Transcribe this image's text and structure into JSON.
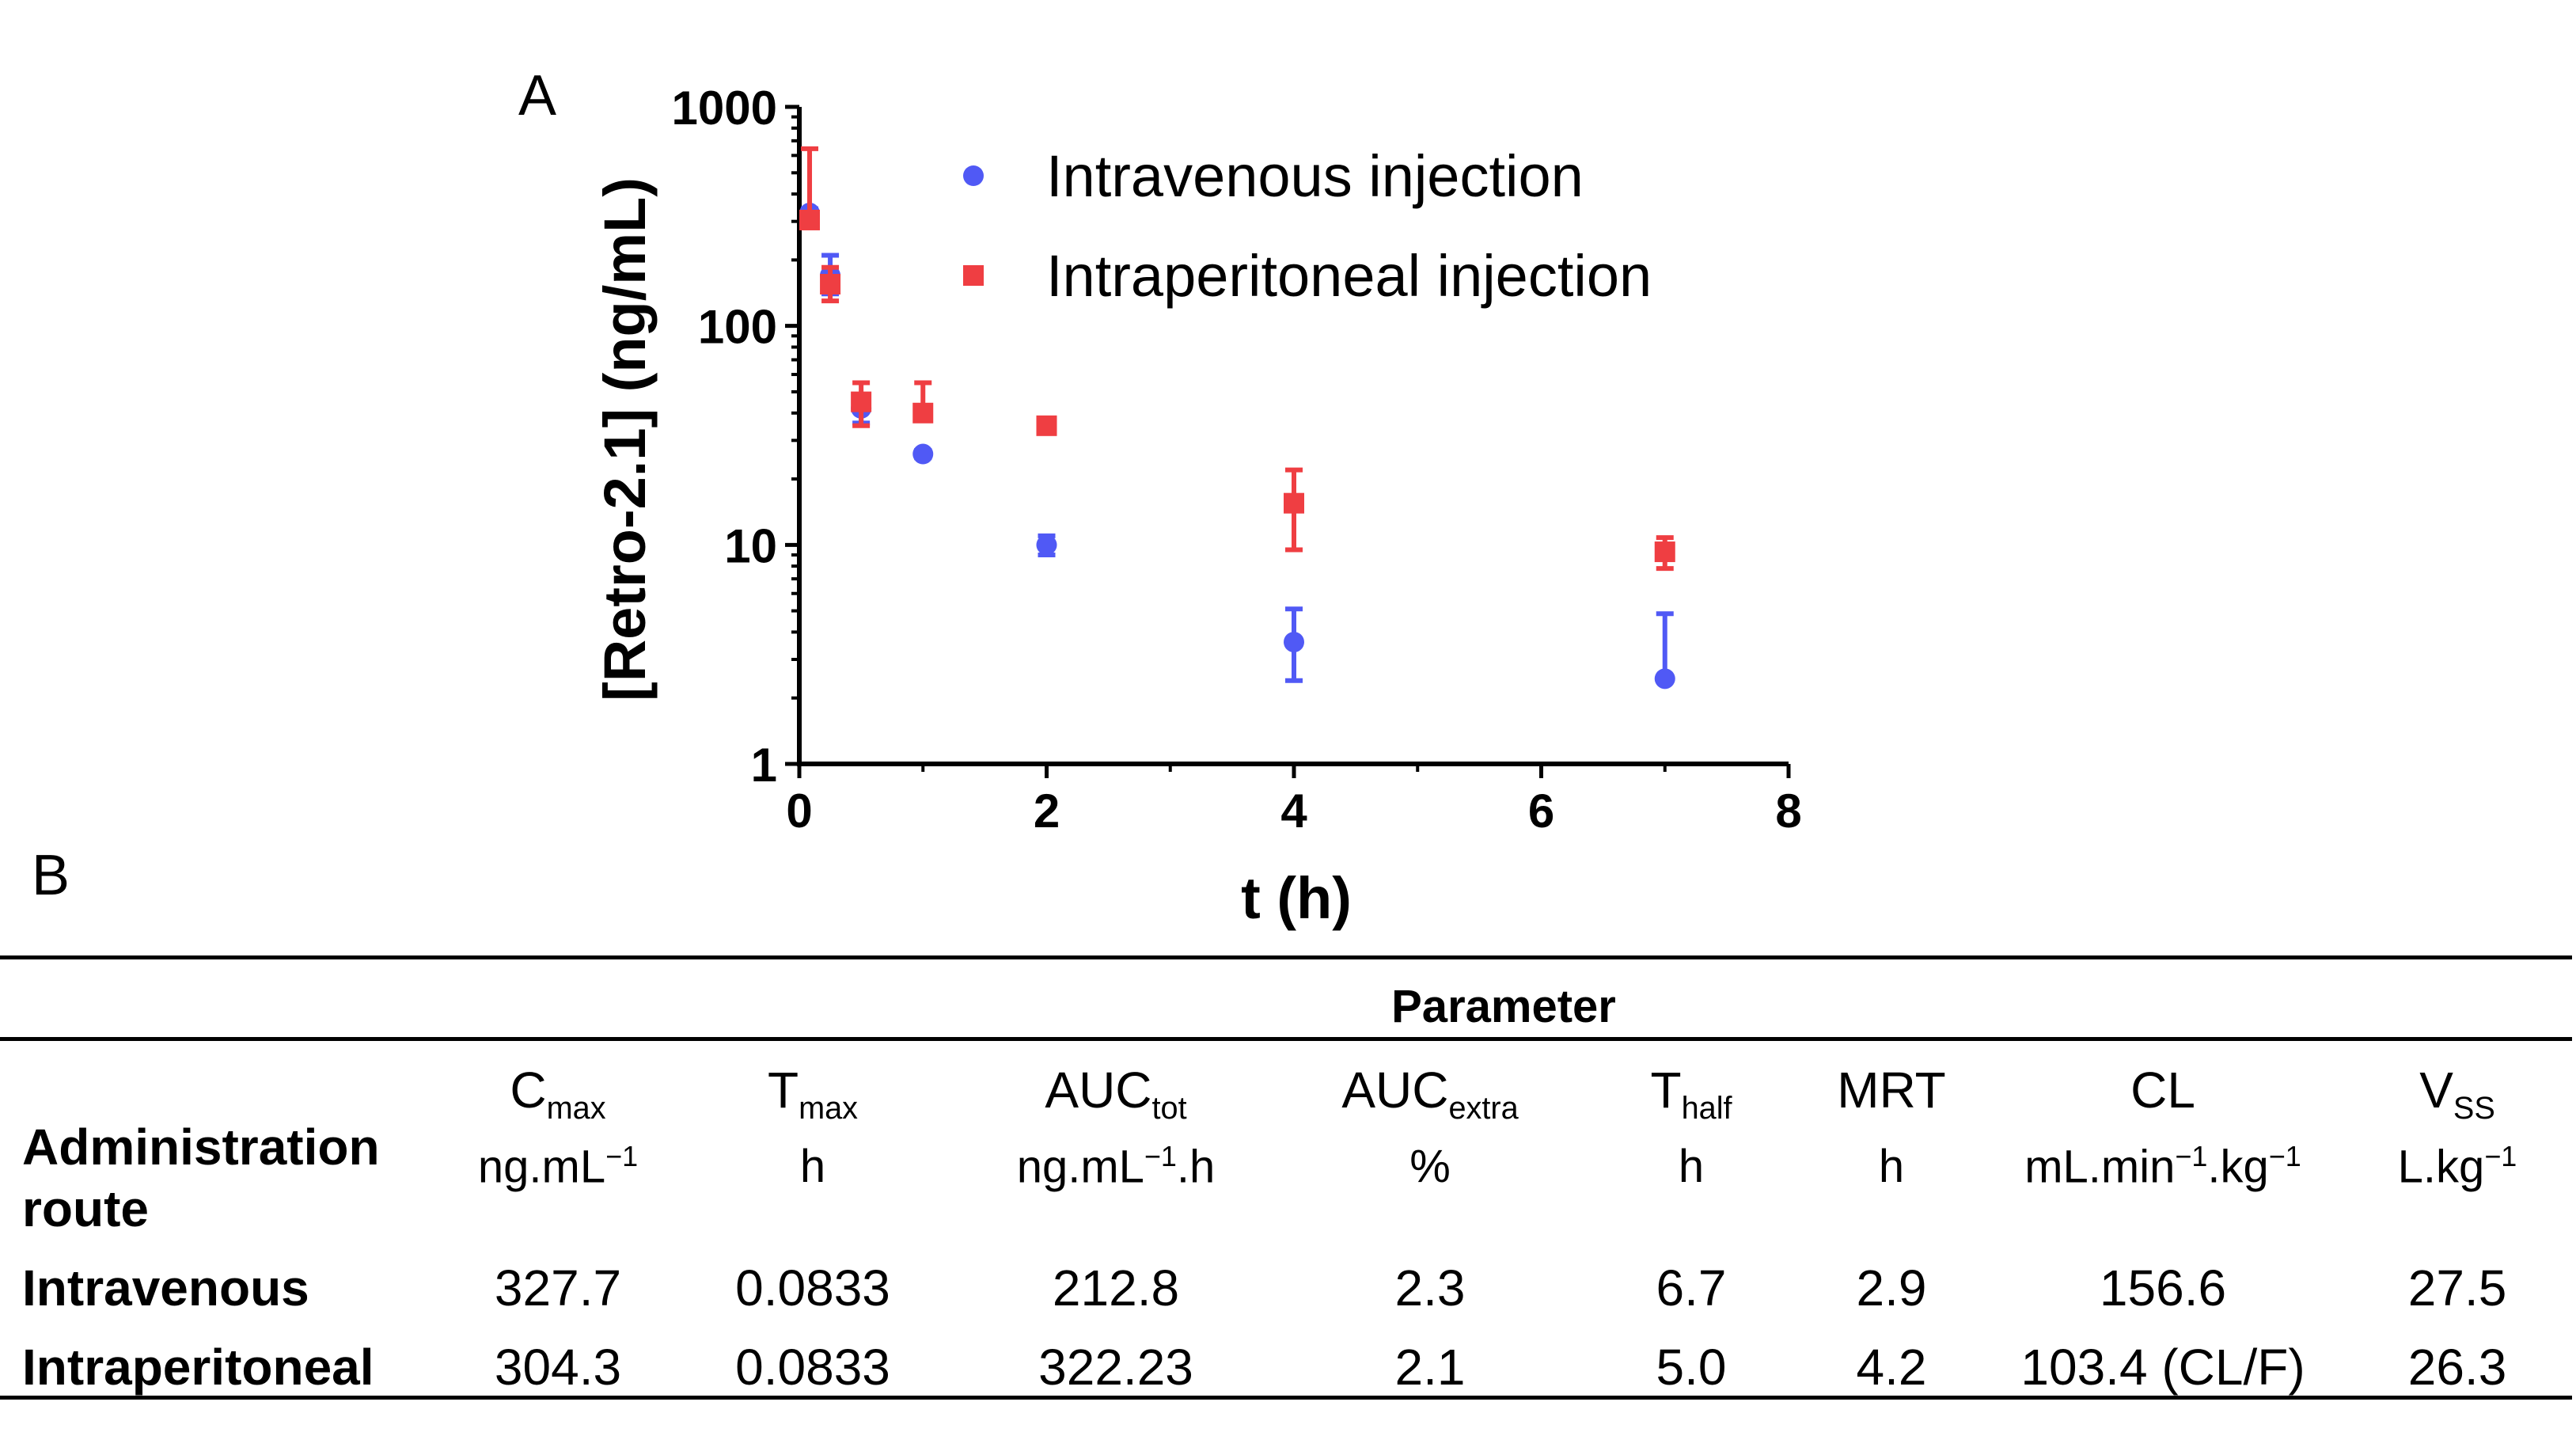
{
  "panels": {
    "a": "A",
    "b": "B"
  },
  "chart_data": {
    "type": "scatter",
    "title": "",
    "xlabel": "t (h)",
    "ylabel": "[Retro-2.1] (ng/mL)",
    "xlim": [
      0,
      8
    ],
    "ylim": [
      1,
      1000
    ],
    "yscale": "log",
    "xticks": [
      "0",
      "2",
      "4",
      "6",
      "8"
    ],
    "yticks": [
      "1",
      "10",
      "100",
      "1000"
    ],
    "legend_position": "top-right",
    "series": [
      {
        "name": "Intravenous injection",
        "color": "#5059f5",
        "marker": "circle",
        "x": [
          0.0833,
          0.25,
          0.5,
          1,
          2,
          4,
          7
        ],
        "y": [
          327.7,
          170,
          42,
          26,
          10,
          3.6,
          2.45
        ],
        "err_low": [
          15,
          30,
          6,
          1,
          1,
          1.2,
          0
        ],
        "err_high": [
          15,
          40,
          6,
          1,
          1,
          1.5,
          2.4
        ]
      },
      {
        "name": "Intraperitoneal injection",
        "color": "#ef3e42",
        "marker": "square",
        "x": [
          0.0833,
          0.25,
          0.5,
          1,
          2,
          4,
          7
        ],
        "y": [
          304.3,
          155,
          45,
          40,
          35,
          15.5,
          9.3
        ],
        "err_low": [
          0,
          25,
          10,
          0,
          0,
          6,
          1.5
        ],
        "err_high": [
          340,
          30,
          10,
          15,
          0,
          6.5,
          1.5
        ]
      }
    ]
  },
  "table": {
    "group_header": "Parameter",
    "route_header": [
      "Administration",
      "route"
    ],
    "columns": [
      {
        "name": "C",
        "sub": "max",
        "unit": "ng.mL",
        "unit_sup": "−1",
        "unit_tail": ""
      },
      {
        "name": "T",
        "sub": "max",
        "unit": "h",
        "unit_sup": "",
        "unit_tail": ""
      },
      {
        "name": "AUC",
        "sub": "tot",
        "unit": "ng.mL",
        "unit_sup": "−1",
        "unit_tail": ".h"
      },
      {
        "name": "AUC",
        "sub": "extra",
        "unit": "%",
        "unit_sup": "",
        "unit_tail": ""
      },
      {
        "name": "T",
        "sub": "half",
        "unit": "h",
        "unit_sup": "",
        "unit_tail": ""
      },
      {
        "name": "MRT",
        "sub": "",
        "unit": "h",
        "unit_sup": "",
        "unit_tail": ""
      },
      {
        "name": "CL",
        "sub": "",
        "unit": "mL.min",
        "unit_sup": "−1",
        "unit_tail": ".kg",
        "unit_sup2": "−1"
      },
      {
        "name": "V",
        "sub": "SS",
        "unit": "L.kg",
        "unit_sup": "−1",
        "unit_tail": ""
      }
    ],
    "rows": [
      {
        "route": "Intravenous",
        "values": [
          "327.7",
          "0.0833",
          "212.8",
          "2.3",
          "6.7",
          "2.9",
          "156.6",
          "27.5"
        ]
      },
      {
        "route": "Intraperitoneal",
        "values": [
          "304.3",
          "0.0833",
          "322.23",
          "2.1",
          "5.0",
          "4.2",
          "103.4 (CL/F)",
          "26.3"
        ]
      }
    ]
  }
}
